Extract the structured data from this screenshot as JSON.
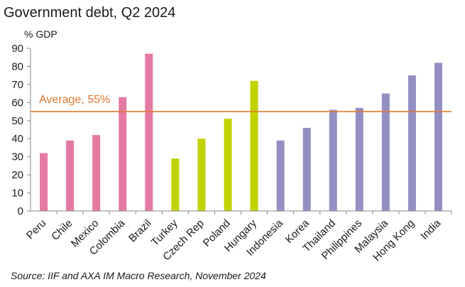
{
  "chart_data": {
    "type": "bar",
    "title": "Government debt, Q2 2024",
    "ylabel": "% GDP",
    "ylim": [
      0,
      90
    ],
    "yticks": [
      0,
      10,
      20,
      30,
      40,
      50,
      60,
      70,
      80,
      90
    ],
    "categories": [
      "Peru",
      "Chile",
      "Mexico",
      "Colombia",
      "Brazil",
      "Turkey",
      "Czech Rep",
      "Poland",
      "Hungary",
      "Indonesia",
      "Korea",
      "Thailand",
      "Philippines",
      "Malaysia",
      "Hong Kong",
      "India"
    ],
    "values": [
      32,
      39,
      42,
      63,
      87,
      29,
      40,
      51,
      72,
      39,
      46,
      56,
      57,
      65,
      75,
      82
    ],
    "groups": [
      "latam",
      "latam",
      "latam",
      "latam",
      "latam",
      "europe",
      "europe",
      "europe",
      "europe",
      "asia",
      "asia",
      "asia",
      "asia",
      "asia",
      "asia",
      "asia"
    ],
    "group_colors": {
      "latam": "#e47aa2",
      "europe": "#c2d100",
      "asia": "#948fc2"
    },
    "reference_line": {
      "value": 55,
      "label": "Average, 55%",
      "color": "#e07a2e"
    },
    "grid": false,
    "source": "Source: IIF and AXA IM Macro Research, November 2024"
  }
}
